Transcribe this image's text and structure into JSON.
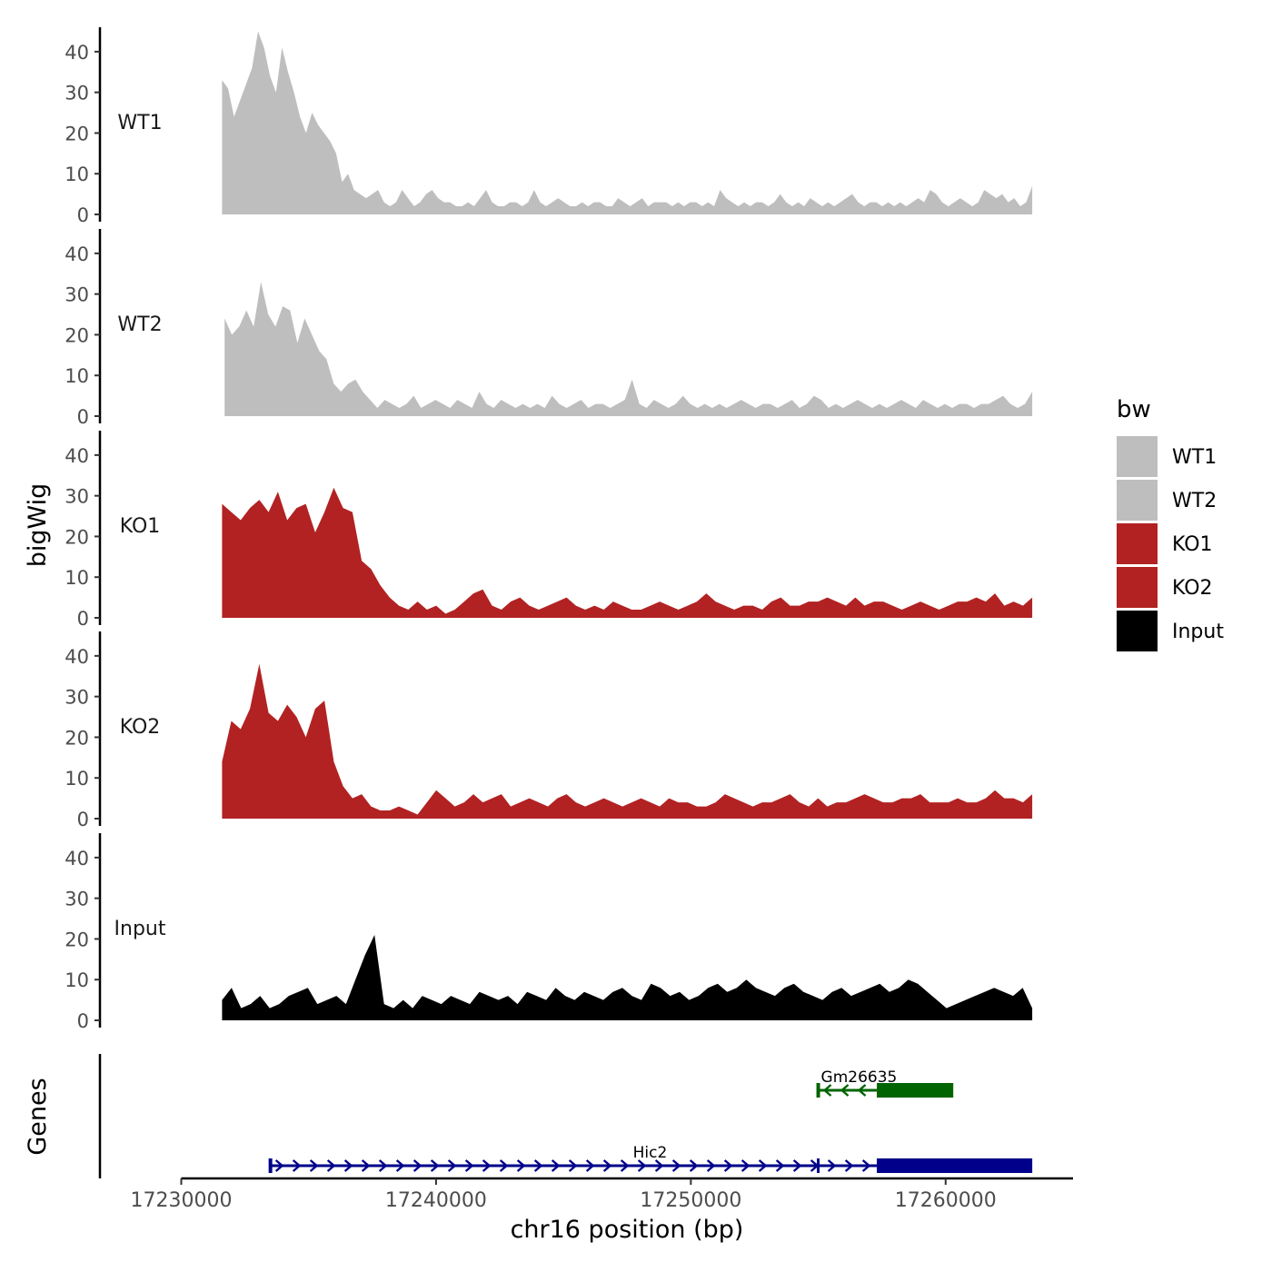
{
  "chart_data": {
    "type": "area",
    "title": "",
    "ylabel": "bigWig",
    "xlabel": "chr16 position (bp)",
    "genes_label": "Genes",
    "x_range": [
      17230000,
      17265000
    ],
    "x_ticks": [
      17230000,
      17240000,
      17250000,
      17260000
    ],
    "x_tick_labels": [
      "17230000",
      "17240000",
      "17250000",
      "17260000"
    ],
    "y_range": [
      0,
      46
    ],
    "y_ticks": [
      0,
      10,
      20,
      30,
      40
    ],
    "y_tick_labels": [
      "0",
      "10",
      "20",
      "30",
      "40"
    ],
    "data_x_start": 17231600,
    "data_x_end": 17263400,
    "tracks": [
      {
        "name": "WT1",
        "color": "#bebebe",
        "x_start": 17231600,
        "x_end": 17263400,
        "values": [
          33,
          31,
          24,
          28,
          32,
          36,
          45,
          41,
          34,
          30,
          41,
          35,
          30,
          24,
          20,
          25,
          22,
          20,
          18,
          15,
          8,
          10,
          6,
          5,
          4,
          5,
          6,
          3,
          2,
          3,
          6,
          4,
          2,
          3,
          5,
          6,
          4,
          3,
          3,
          2,
          2,
          3,
          2,
          4,
          6,
          3,
          2,
          2,
          3,
          3,
          2,
          3,
          6,
          3,
          2,
          3,
          4,
          3,
          2,
          2,
          3,
          2,
          3,
          3,
          2,
          2,
          4,
          3,
          2,
          3,
          4,
          2,
          3,
          3,
          3,
          2,
          3,
          2,
          3,
          3,
          2,
          3,
          2,
          6,
          4,
          3,
          2,
          3,
          2,
          3,
          3,
          2,
          3,
          5,
          3,
          2,
          3,
          2,
          4,
          3,
          2,
          3,
          2,
          3,
          4,
          5,
          3,
          2,
          3,
          3,
          2,
          3,
          2,
          3,
          2,
          3,
          4,
          3,
          6,
          5,
          3,
          2,
          3,
          4,
          3,
          2,
          3,
          6,
          5,
          4,
          5,
          3,
          4,
          2,
          3,
          7
        ]
      },
      {
        "name": "WT2",
        "color": "#bebebe",
        "x_start": 17231700,
        "x_end": 17263400,
        "values": [
          24,
          20,
          22,
          26,
          22,
          33,
          25,
          22,
          27,
          26,
          18,
          24,
          20,
          16,
          14,
          8,
          6,
          8,
          9,
          6,
          4,
          2,
          4,
          3,
          2,
          3,
          5,
          2,
          3,
          4,
          3,
          2,
          4,
          3,
          2,
          6,
          3,
          2,
          4,
          3,
          2,
          3,
          2,
          3,
          2,
          5,
          3,
          2,
          3,
          4,
          2,
          3,
          3,
          2,
          3,
          4,
          9,
          3,
          2,
          4,
          3,
          2,
          3,
          5,
          3,
          2,
          3,
          2,
          3,
          2,
          3,
          4,
          3,
          2,
          3,
          3,
          2,
          3,
          4,
          2,
          3,
          5,
          4,
          2,
          3,
          2,
          3,
          4,
          3,
          2,
          3,
          2,
          3,
          4,
          3,
          2,
          4,
          3,
          2,
          3,
          2,
          3,
          3,
          2,
          3,
          3,
          4,
          5,
          3,
          2,
          3,
          6
        ]
      },
      {
        "name": "KO1",
        "color": "#b22222",
        "x_start": 17231600,
        "x_end": 17263400,
        "values": [
          28,
          26,
          24,
          27,
          29,
          26,
          31,
          24,
          27,
          28,
          21,
          26,
          32,
          27,
          26,
          14,
          12,
          8,
          5,
          3,
          2,
          4,
          2,
          3,
          1,
          2,
          4,
          6,
          7,
          3,
          2,
          4,
          5,
          3,
          2,
          3,
          4,
          5,
          3,
          2,
          3,
          2,
          4,
          3,
          2,
          2,
          3,
          4,
          3,
          2,
          3,
          4,
          6,
          4,
          3,
          2,
          3,
          3,
          2,
          4,
          5,
          3,
          3,
          4,
          4,
          5,
          4,
          3,
          5,
          3,
          4,
          4,
          3,
          2,
          3,
          4,
          3,
          2,
          3,
          4,
          4,
          5,
          4,
          6,
          3,
          4,
          3,
          5
        ]
      },
      {
        "name": "KO2",
        "color": "#b22222",
        "x_start": 17231600,
        "x_end": 17263400,
        "values": [
          14,
          24,
          22,
          27,
          38,
          26,
          24,
          28,
          25,
          20,
          27,
          29,
          14,
          8,
          5,
          6,
          3,
          2,
          2,
          3,
          2,
          1,
          4,
          7,
          5,
          3,
          4,
          6,
          4,
          5,
          6,
          3,
          4,
          5,
          4,
          3,
          5,
          6,
          4,
          3,
          4,
          5,
          4,
          3,
          4,
          5,
          4,
          3,
          5,
          4,
          4,
          3,
          3,
          4,
          6,
          5,
          4,
          3,
          4,
          4,
          5,
          6,
          4,
          3,
          5,
          3,
          4,
          4,
          5,
          6,
          5,
          4,
          4,
          5,
          5,
          6,
          4,
          4,
          4,
          5,
          4,
          4,
          5,
          7,
          5,
          5,
          4,
          6
        ]
      },
      {
        "name": "Input",
        "color": "#000000",
        "x_start": 17231600,
        "x_end": 17263400,
        "values": [
          5,
          8,
          3,
          4,
          6,
          3,
          4,
          6,
          7,
          8,
          4,
          5,
          6,
          4,
          10,
          16,
          21,
          4,
          3,
          5,
          3,
          6,
          5,
          4,
          6,
          5,
          4,
          7,
          6,
          5,
          6,
          4,
          7,
          6,
          5,
          8,
          6,
          5,
          7,
          6,
          5,
          7,
          8,
          6,
          5,
          9,
          8,
          6,
          7,
          5,
          6,
          8,
          9,
          7,
          8,
          10,
          8,
          7,
          6,
          8,
          9,
          7,
          6,
          5,
          7,
          8,
          6,
          7,
          8,
          9,
          7,
          8,
          10,
          9,
          7,
          5,
          3,
          4,
          5,
          6,
          7,
          8,
          7,
          6,
          8,
          3
        ]
      }
    ],
    "legend": {
      "title": "bw",
      "placement": "right",
      "entries": [
        {
          "label": "WT1",
          "color": "#bebebe"
        },
        {
          "label": "WT2",
          "color": "#bebebe"
        },
        {
          "label": "KO1",
          "color": "#b22222"
        },
        {
          "label": "KO2",
          "color": "#b22222"
        },
        {
          "label": "Input",
          "color": "#000000"
        }
      ]
    },
    "genes": [
      {
        "name": "Gm26635",
        "color": "#006400",
        "strand": "-",
        "start": 17255000,
        "end": 17260300,
        "thick_start": 17257300,
        "thick_end": 17260300,
        "row": 0
      },
      {
        "name": "Hic2",
        "color": "#00008b",
        "strand": "+",
        "start": 17233500,
        "end": 17263400,
        "thick_start": 17257300,
        "thick_end": 17263400,
        "row": 1
      }
    ]
  }
}
